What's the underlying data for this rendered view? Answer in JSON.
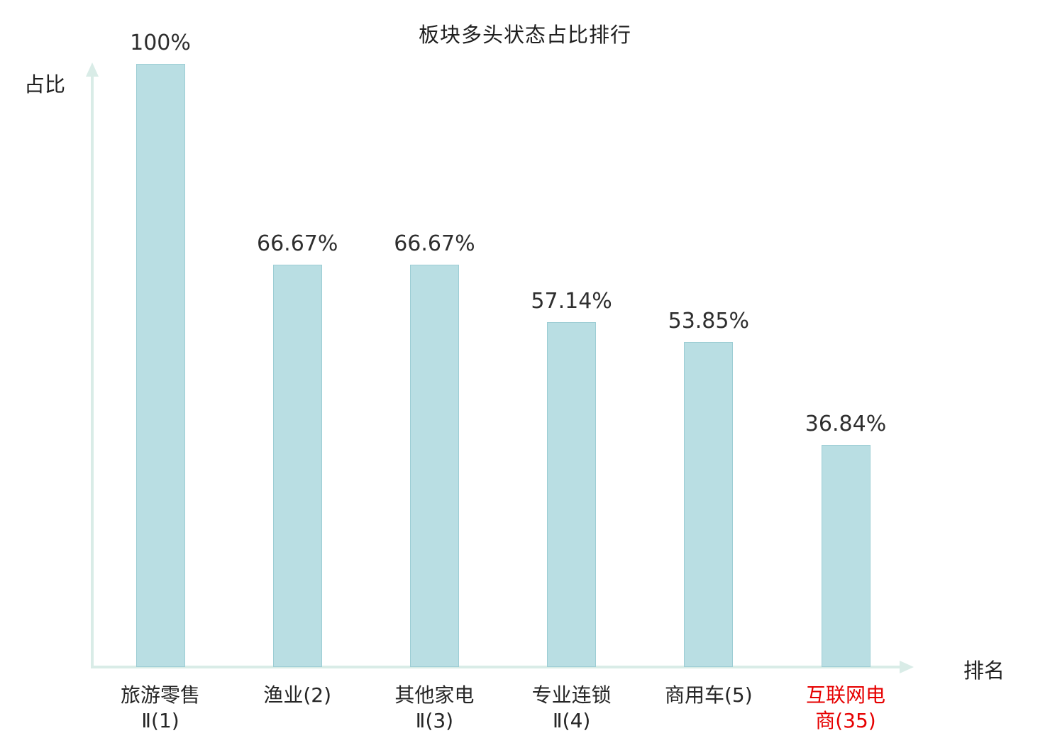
{
  "chart_data": {
    "type": "bar",
    "title": "板块多头状态占比排行",
    "ylabel": "占比",
    "xlabel": "排名",
    "categories": [
      "旅游零售Ⅱ(1)",
      "渔业(2)",
      "其他家电Ⅱ(3)",
      "专业连锁Ⅱ(4)",
      "商用车(5)",
      "互联网电商(35)"
    ],
    "category_lines": [
      [
        "旅游零售",
        "Ⅱ(1)"
      ],
      [
        "渔业(2)"
      ],
      [
        "其他家电",
        "Ⅱ(3)"
      ],
      [
        "专业连锁",
        "Ⅱ(4)"
      ],
      [
        "商用车(5)"
      ],
      [
        "互联网电",
        "商(35)"
      ]
    ],
    "values": [
      100,
      66.67,
      66.67,
      57.14,
      53.85,
      36.84
    ],
    "value_labels": [
      "100%",
      "66.67%",
      "66.67%",
      "57.14%",
      "53.85%",
      "36.84%"
    ],
    "ylim": [
      0,
      100
    ],
    "grid": false,
    "legend": "none",
    "highlight_index": 5,
    "colors": {
      "bar_fill": "#b9dee3",
      "bar_border": "#9ccdd4",
      "axis": "#d9ece7",
      "text": "#262626",
      "highlight": "#e60000"
    }
  }
}
